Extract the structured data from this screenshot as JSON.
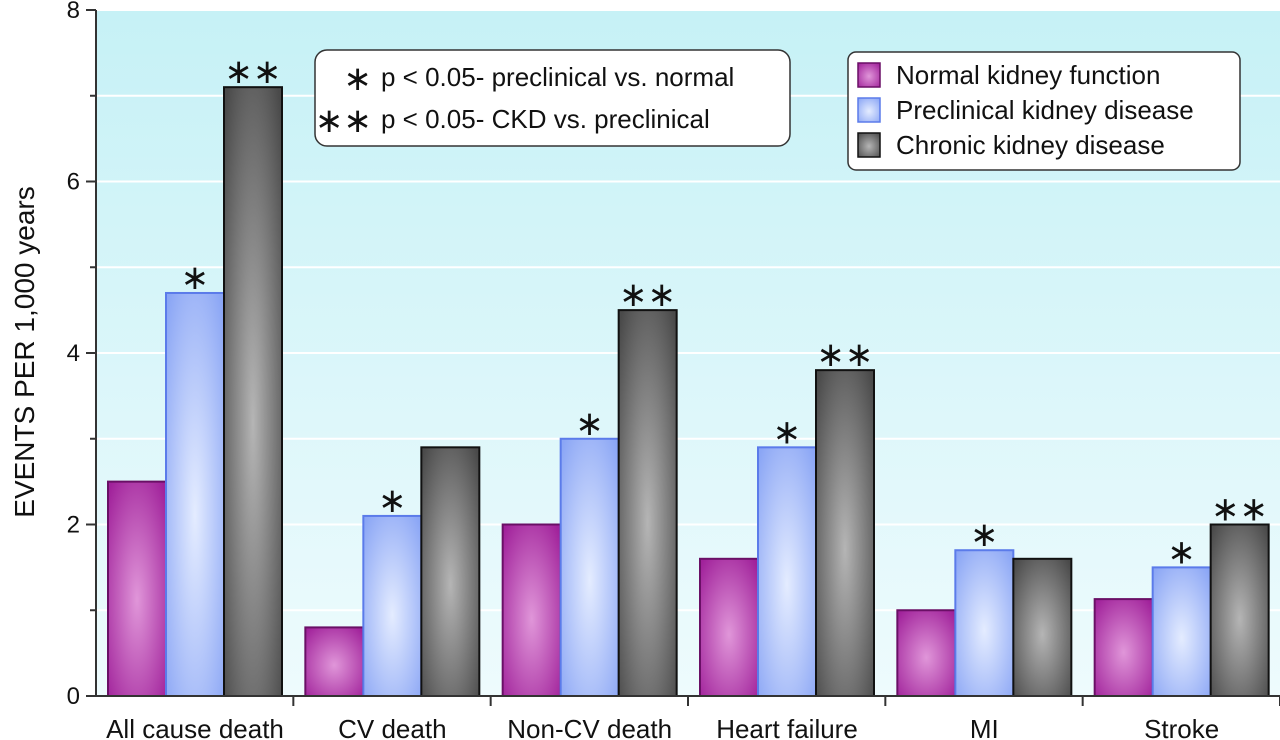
{
  "chart_data": {
    "type": "bar",
    "ylabel": "EVENTS PER 1,000 years",
    "ylim": [
      0,
      8
    ],
    "yticks": [
      "0",
      "2",
      "4",
      "6",
      "8"
    ],
    "grid": true,
    "categories": [
      "All cause death",
      "CV death",
      "Non-CV death",
      "Heart failure",
      "MI",
      "Stroke"
    ],
    "series": [
      {
        "name": "Normal kidney function",
        "color": "#a0219a",
        "values": [
          2.5,
          0.8,
          2.0,
          1.6,
          1.0,
          1.13
        ],
        "stars": [
          "",
          "",
          "",
          "",
          "",
          ""
        ]
      },
      {
        "name": "Preclinical kidney disease",
        "color": "#7f9af2",
        "values": [
          4.7,
          2.1,
          3.0,
          2.9,
          1.7,
          1.5
        ],
        "stars": [
          "*",
          "*",
          "*",
          "*",
          "*",
          "*"
        ]
      },
      {
        "name": "Chronic kidney disease",
        "color": "#555555",
        "values": [
          7.1,
          2.9,
          4.5,
          3.8,
          1.6,
          2.0
        ],
        "stars": [
          "**",
          "",
          "**",
          "**",
          "",
          "**"
        ]
      }
    ],
    "annotation": [
      {
        "symbol": "*",
        "text": "p < 0.05- preclinical vs. normal"
      },
      {
        "symbol": "**",
        "text": "p < 0.05- CKD vs. preclinical"
      }
    ],
    "legend_position": "top-right"
  }
}
